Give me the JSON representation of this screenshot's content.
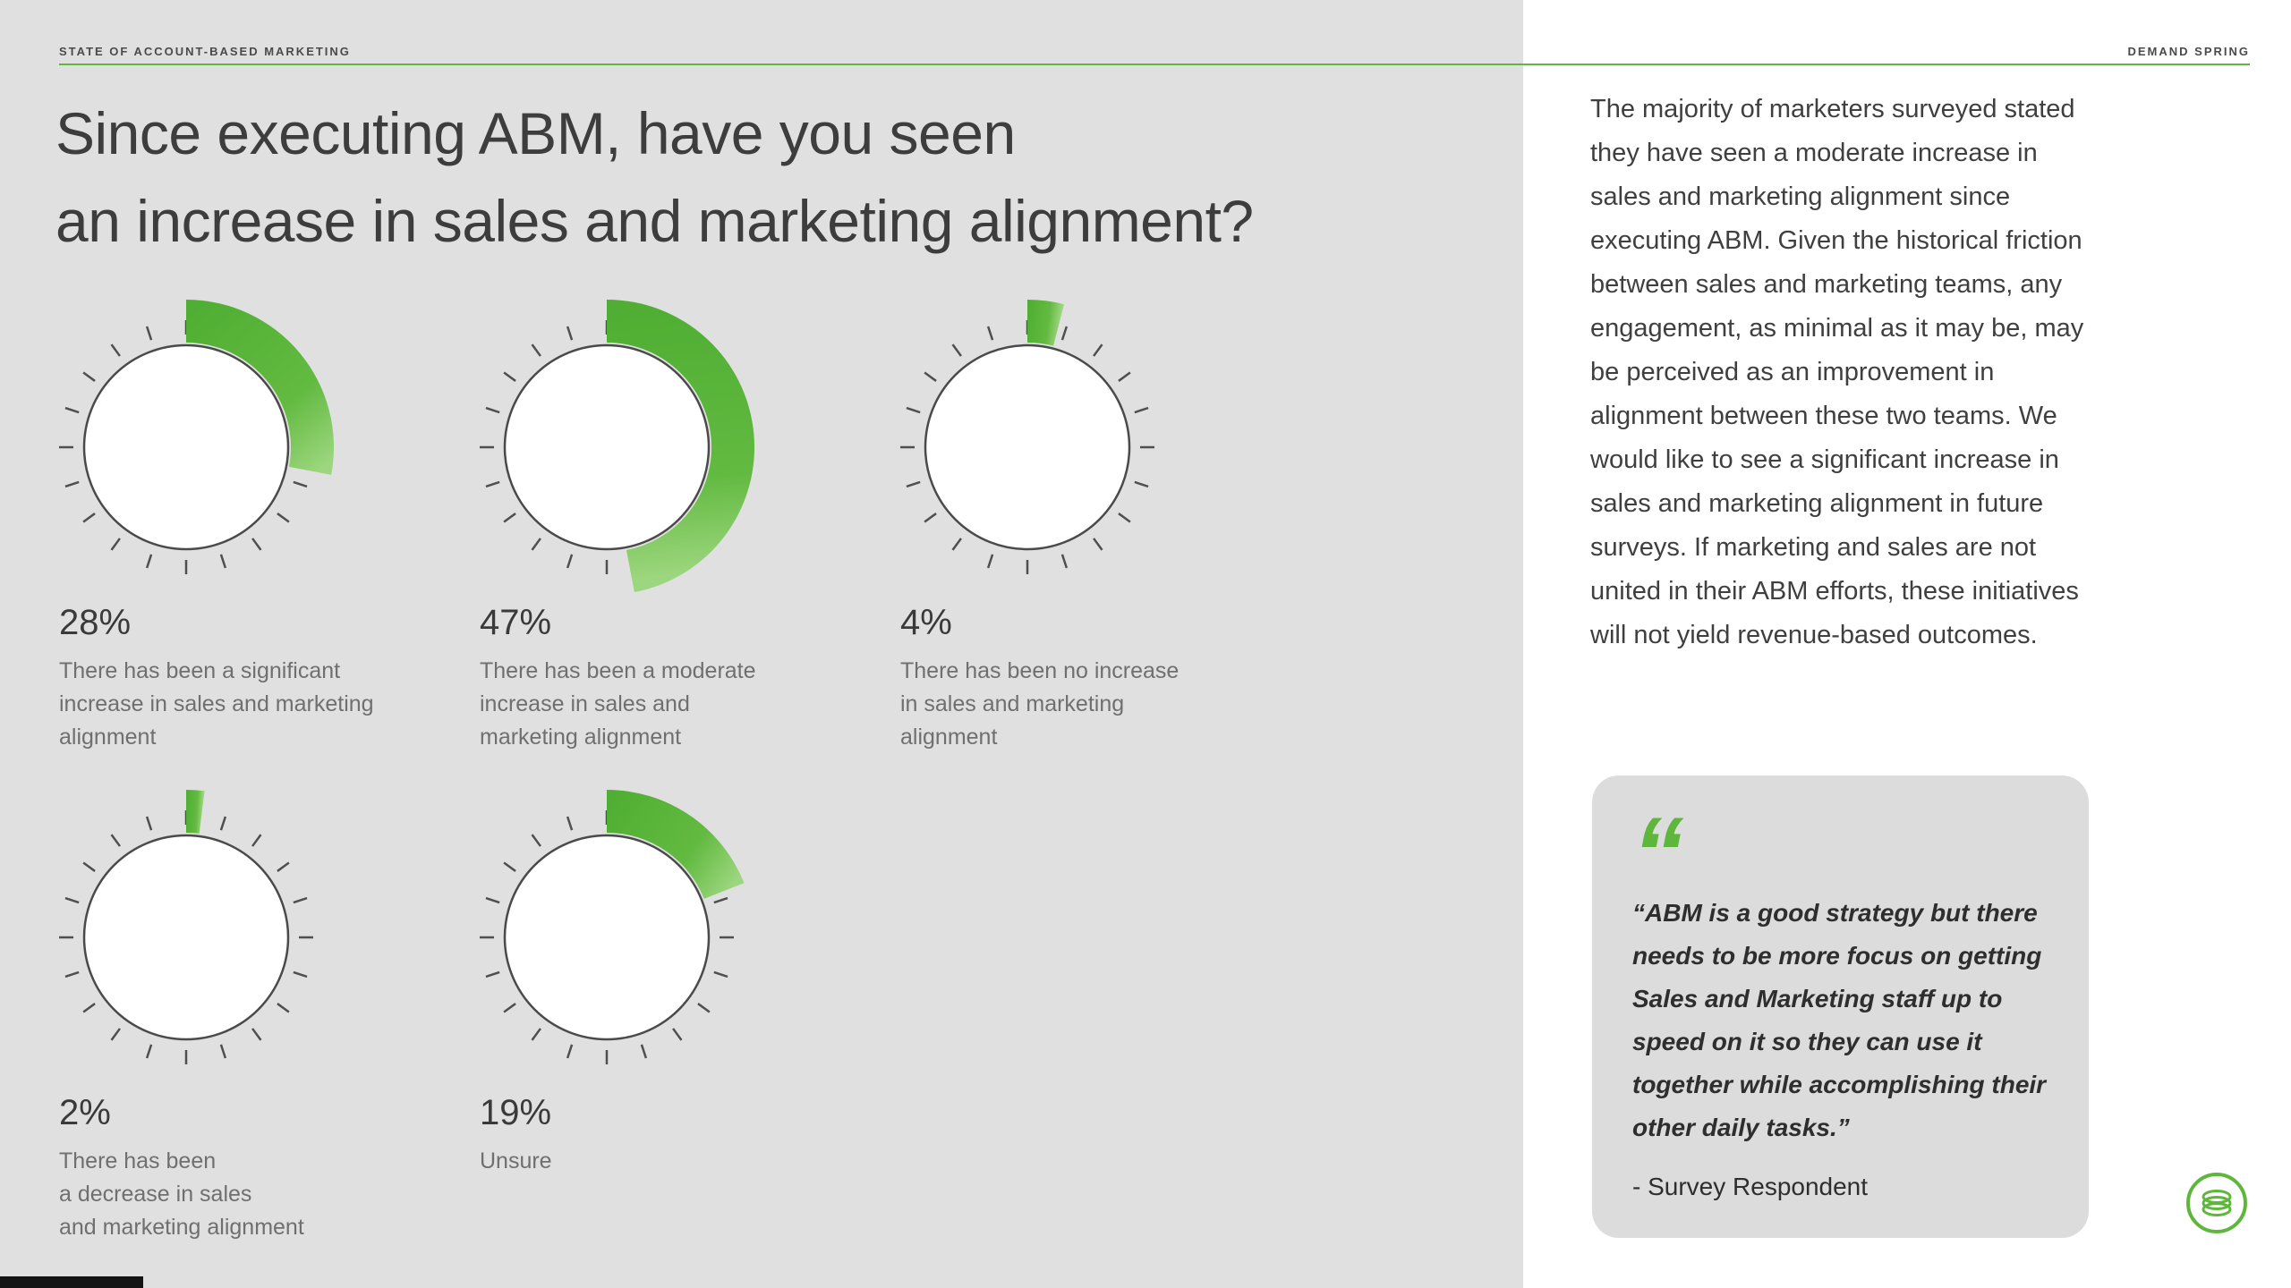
{
  "header": {
    "left": "STATE OF ACCOUNT-BASED MARKETING",
    "right": "DEMAND SPRING"
  },
  "headline": {
    "line1": "Since executing ABM, have you seen",
    "line2": "an increase in sales and marketing alignment?"
  },
  "chart_data": {
    "type": "gauge",
    "unit": "percent",
    "title": "Since executing ABM, have you seen an increase in sales and marketing alignment?",
    "gauge_start_angle_deg": -90,
    "gauge_direction": "clockwise",
    "accent_color": "#5eb73c",
    "items": [
      {
        "value": 28,
        "value_label": "28%",
        "label": "There has been a significant\nincrease in sales and marketing\nalignment"
      },
      {
        "value": 47,
        "value_label": "47%",
        "label": "There has been a moderate\nincrease in sales and\nmarketing alignment"
      },
      {
        "value": 4,
        "value_label": "4%",
        "label": "There has been no increase\nin sales and marketing\nalignment"
      },
      {
        "value": 2,
        "value_label": "2%",
        "label": "There has been\na decrease in sales\nand marketing alignment"
      },
      {
        "value": 19,
        "value_label": "19%",
        "label": "Unsure"
      }
    ]
  },
  "sidebar": {
    "paragraph": "The majority of marketers surveyed stated they have seen a moderate increase in sales and marketing alignment since executing ABM. Given the historical friction between sales and marketing teams, any engagement, as minimal as it may be, may be perceived as an improvement in alignment between these two teams. We would like to see a significant increase in sales and marketing alignment in future surveys. If marketing and sales are not united in their ABM efforts, these initiatives will not yield revenue-based outcomes.",
    "quote": {
      "text": "“ABM is a good strategy but there needs to be more focus on getting Sales and Marketing staff up to speed on it so they can use it together while accomplishing their other daily tasks.”",
      "attribution": "- Survey Respondent"
    }
  },
  "colors": {
    "accent": "#5eb73c",
    "left_background": "#e0e0e0",
    "right_background": "#ffffff",
    "quote_card_background": "#dcdcdc",
    "text_dark": "#3d3d3d",
    "text_muted": "#6f6f6f",
    "footer_bar": "#141414"
  }
}
